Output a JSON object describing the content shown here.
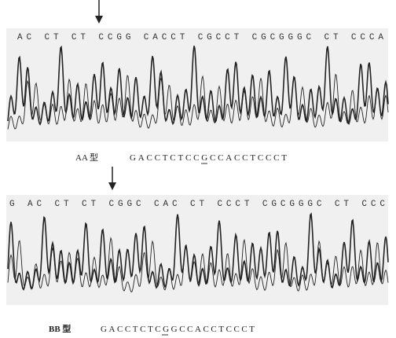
{
  "panels": [
    {
      "trace_letters": "AC CT CT CCGG CACCT CGCCT CGCGGGC CT CCCA",
      "genotype": "AA 型",
      "sequence": "GACCTCTCCGCCACCTCCCT"
    },
    {
      "trace_letters": "G AC CT CT CGGC CAC CT CCCT CGCGGGC CT CCC",
      "genotype": "BB 型",
      "sequence": "GACCTCTCGGCCACCTCCCT"
    }
  ]
}
